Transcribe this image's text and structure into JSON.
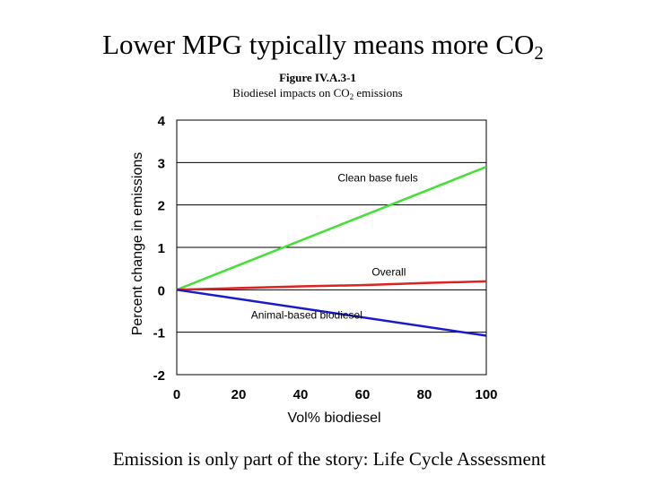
{
  "slide": {
    "title_main": "Lower MPG typically means more CO",
    "title_sub": "2",
    "footer": "Emission is only part of the story: Life Cycle Assessment"
  },
  "figure": {
    "number": "Figure IV.A.3-1",
    "title_main": "Biodiesel impacts on CO",
    "title_sub": "2",
    "title_tail": " emissions"
  },
  "chart_data": {
    "type": "line",
    "xlabel": "Vol% biodiesel",
    "ylabel": "Percent change in emissions",
    "xlim": [
      0,
      100
    ],
    "ylim": [
      -2,
      4
    ],
    "x_ticks": [
      0,
      20,
      40,
      60,
      80,
      100
    ],
    "y_ticks": [
      -2,
      -1,
      0,
      1,
      2,
      3,
      4
    ],
    "grid": "horizontal",
    "series": [
      {
        "name": "Clean base fuels",
        "color": "#44e033",
        "x": [
          0,
          100
        ],
        "y": [
          0,
          2.9
        ]
      },
      {
        "name": "Overall",
        "color": "#dd2222",
        "x": [
          0,
          20,
          40,
          60,
          80,
          100
        ],
        "y": [
          0,
          0.04,
          0.08,
          0.11,
          0.16,
          0.2
        ]
      },
      {
        "name": "Animal-based biodiesel",
        "color": "#1a1acc",
        "x": [
          0,
          100
        ],
        "y": [
          0,
          -1.08
        ]
      }
    ]
  }
}
